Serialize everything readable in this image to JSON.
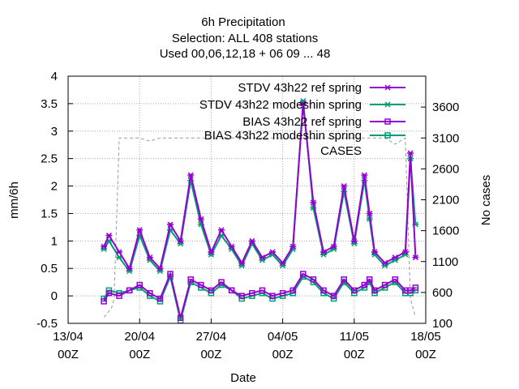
{
  "chart_data": {
    "type": "line",
    "title_lines": [
      "6h Precipitation",
      "Selection: ALL     408 stations",
      "Used  00,06,12,18  + 06 09 ... 48"
    ],
    "xlabel": "Date",
    "ylabel": "mm/6h",
    "y2label": "No cases",
    "xlim_days": [
      0,
      35
    ],
    "ylim": [
      -0.5,
      4
    ],
    "y2lim": [
      100,
      4100
    ],
    "x_tick_labels": [
      {
        "day": "13/04",
        "hour": "00Z"
      },
      {
        "day": "20/04",
        "hour": "00Z"
      },
      {
        "day": "27/04",
        "hour": "00Z"
      },
      {
        "day": "04/05",
        "hour": "00Z"
      },
      {
        "day": "11/05",
        "hour": "00Z"
      },
      {
        "day": "18/05",
        "hour": "00Z"
      }
    ],
    "y_ticks": [
      "-0.5",
      "0",
      "0.5",
      "1",
      "1.5",
      "2",
      "2.5",
      "3",
      "3.5",
      "4"
    ],
    "y2_ticks": [
      "100",
      "600",
      "1100",
      "1600",
      "2100",
      "2600",
      "3100",
      "3600"
    ],
    "grid": true,
    "legend_position": "top-right",
    "series": [
      {
        "name": "STDV 43h22 ref spring",
        "color": "#9400d3",
        "marker": "star",
        "axis": "left",
        "x": [
          3.5,
          4,
          5,
          6,
          7,
          8,
          9,
          10,
          11,
          12,
          13,
          14,
          15,
          16,
          17,
          18,
          19,
          20,
          21,
          22,
          23,
          24,
          25,
          26,
          27,
          28,
          29,
          29.5,
          30,
          31,
          32,
          33,
          33.5,
          34
        ],
        "y": [
          0.9,
          1.1,
          0.8,
          0.5,
          1.2,
          0.7,
          0.5,
          1.3,
          1.0,
          2.2,
          1.4,
          0.8,
          1.2,
          0.9,
          0.6,
          1.0,
          0.7,
          0.8,
          0.6,
          0.9,
          3.5,
          1.7,
          0.8,
          0.9,
          2.0,
          1.0,
          2.2,
          1.5,
          0.8,
          0.6,
          0.7,
          0.8,
          2.6,
          0.7
        ]
      },
      {
        "name": "STDV 43h22 modeshin spring",
        "color": "#009e73",
        "marker": "star",
        "axis": "left",
        "x": [
          3.5,
          4,
          5,
          6,
          7,
          8,
          9,
          10,
          11,
          12,
          13,
          14,
          15,
          16,
          17,
          18,
          19,
          20,
          21,
          22,
          23,
          24,
          25,
          26,
          27,
          28,
          29,
          29.5,
          30,
          31,
          32,
          33,
          33.5,
          34
        ],
        "y": [
          0.85,
          1.0,
          0.7,
          0.45,
          1.1,
          0.65,
          0.45,
          1.2,
          0.95,
          2.1,
          1.3,
          0.75,
          1.1,
          0.85,
          0.55,
          0.95,
          0.65,
          0.75,
          0.55,
          0.85,
          3.55,
          1.6,
          0.75,
          0.85,
          1.9,
          0.95,
          2.1,
          1.4,
          0.75,
          0.55,
          0.65,
          0.75,
          2.5,
          1.3
        ]
      },
      {
        "name": "BIAS 43h22 ref spring",
        "color": "#9400d3",
        "marker": "square",
        "axis": "left",
        "x": [
          3.5,
          4,
          5,
          6,
          7,
          8,
          9,
          10,
          11,
          12,
          13,
          14,
          15,
          16,
          17,
          18,
          19,
          20,
          21,
          22,
          23,
          24,
          25,
          26,
          27,
          28,
          29,
          29.5,
          30,
          31,
          32,
          33,
          33.5,
          34
        ],
        "y": [
          -0.1,
          0.05,
          0.0,
          0.1,
          0.2,
          0.05,
          -0.05,
          0.4,
          -0.4,
          0.3,
          0.2,
          0.1,
          0.25,
          0.1,
          0.0,
          0.05,
          0.1,
          0.0,
          0.05,
          0.1,
          0.4,
          0.3,
          0.1,
          0.0,
          0.3,
          0.1,
          0.2,
          0.3,
          0.1,
          0.2,
          0.3,
          0.1,
          0.1,
          0.15
        ]
      },
      {
        "name": "BIAS 43h22 modeshin spring",
        "color": "#009e73",
        "marker": "square",
        "axis": "left",
        "x": [
          3.5,
          4,
          5,
          6,
          7,
          8,
          9,
          10,
          11,
          12,
          13,
          14,
          15,
          16,
          17,
          18,
          19,
          20,
          21,
          22,
          23,
          24,
          25,
          26,
          27,
          28,
          29,
          29.5,
          30,
          31,
          32,
          33,
          33.5,
          34
        ],
        "y": [
          -0.05,
          0.1,
          0.05,
          0.1,
          0.15,
          0.0,
          -0.1,
          0.35,
          -0.45,
          0.25,
          0.15,
          0.05,
          0.2,
          0.1,
          -0.05,
          0.0,
          0.05,
          -0.05,
          0.0,
          0.05,
          0.35,
          0.25,
          0.05,
          -0.05,
          0.25,
          0.05,
          0.15,
          0.25,
          0.05,
          0.15,
          0.25,
          0.05,
          0.05,
          0.1
        ]
      },
      {
        "name": "CASES",
        "color": "#999999",
        "marker": "none",
        "axis": "right",
        "x": [
          3.5,
          4,
          4.25,
          4.5,
          5,
          6,
          7,
          8,
          9,
          10,
          11,
          12,
          13,
          14,
          15,
          16,
          17,
          18,
          19,
          20,
          21,
          22,
          23,
          24,
          25,
          26,
          27,
          28,
          29,
          30,
          31,
          32,
          33,
          33.5,
          34
        ],
        "y": [
          200,
          300,
          350,
          500,
          3100,
          3100,
          3100,
          3050,
          3100,
          3100,
          3100,
          3100,
          3100,
          3100,
          3100,
          3100,
          3100,
          3100,
          3100,
          3100,
          3100,
          3100,
          3100,
          3100,
          3100,
          3100,
          3100,
          3100,
          3100,
          3100,
          3100,
          3000,
          3100,
          500,
          200
        ]
      }
    ]
  }
}
